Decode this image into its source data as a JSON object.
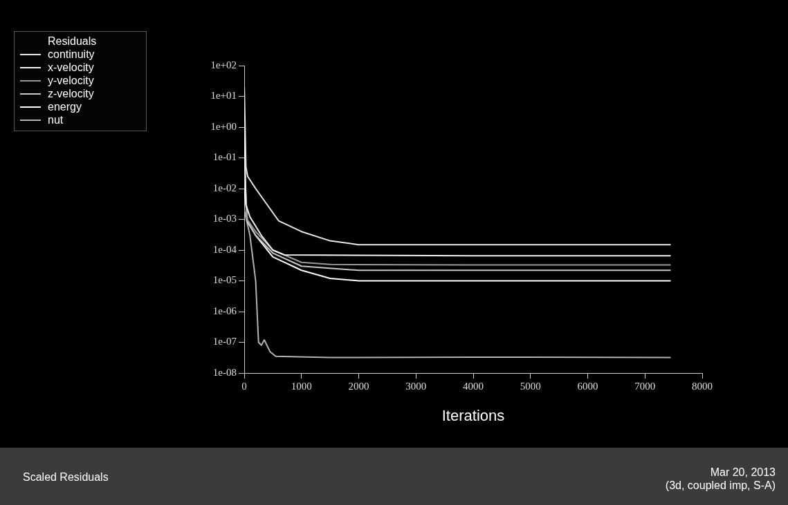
{
  "chart_data": {
    "type": "line",
    "title": "Scaled Residuals",
    "xlabel": "Iterations",
    "legend_title": "Residuals",
    "legend": "top left",
    "log": "y",
    "grid": false,
    "marker": "none",
    "xlim": [
      0,
      8000
    ],
    "xticks": [
      0,
      1000,
      2000,
      3000,
      4000,
      5000,
      6000,
      7000,
      8000
    ],
    "ylim": [
      1e-08,
      100
    ],
    "yticks": [
      {
        "value": 1e-08,
        "label": "1e-08"
      },
      {
        "value": 1e-07,
        "label": "1e-07"
      },
      {
        "value": 1e-06,
        "label": "1e-06"
      },
      {
        "value": 1e-05,
        "label": "1e-05"
      },
      {
        "value": 0.0001,
        "label": "1e-04"
      },
      {
        "value": 0.001,
        "label": "1e-03"
      },
      {
        "value": 0.01,
        "label": "1e-02"
      },
      {
        "value": 0.1,
        "label": "1e-01"
      },
      {
        "value": 1,
        "label": "1e+00"
      },
      {
        "value": 10,
        "label": "1e+01"
      },
      {
        "value": 100,
        "label": "1e+02"
      }
    ],
    "annotations": [
      "Mar 20, 2013",
      "(3d, coupled imp, S-A)"
    ],
    "series": [
      {
        "name": "continuity",
        "color": "#e8e8e8",
        "x": [
          1,
          30,
          60,
          200,
          400,
          600,
          1000,
          1500,
          2000,
          4000,
          7450
        ],
        "values": [
          20,
          0.05,
          0.025,
          0.01,
          0.003,
          0.0009,
          0.0004,
          0.0002,
          0.00015,
          0.00015,
          0.00015
        ]
      },
      {
        "name": "x-velocity",
        "color": "#f4f4f4",
        "x": [
          1,
          30,
          100,
          300,
          500,
          700,
          4000,
          7450
        ],
        "values": [
          0.8,
          0.003,
          0.0012,
          0.0003,
          0.0001,
          7e-05,
          6.5e-05,
          6.5e-05
        ]
      },
      {
        "name": "y-velocity",
        "color": "#9a9a9a",
        "x": [
          1,
          50,
          200,
          500,
          1000,
          1500,
          4000,
          7450
        ],
        "values": [
          0.1,
          0.001,
          0.0004,
          0.0001,
          4e-05,
          3.4e-05,
          3.3e-05,
          3.3e-05
        ]
      },
      {
        "name": "z-velocity",
        "color": "#c8c8c8",
        "x": [
          1,
          50,
          200,
          500,
          1000,
          2000,
          4000,
          7450
        ],
        "values": [
          0.05,
          0.0009,
          0.0003,
          8e-05,
          3e-05,
          2.2e-05,
          2.2e-05,
          2.2e-05
        ]
      },
      {
        "name": "energy",
        "color": "#ffffff",
        "x": [
          1,
          60,
          200,
          500,
          1000,
          1500,
          2000,
          4000,
          7450
        ],
        "values": [
          0.01,
          0.0008,
          0.0003,
          6e-05,
          2.2e-05,
          1.2e-05,
          1e-05,
          1e-05,
          1e-05
        ]
      },
      {
        "name": "nut",
        "color": "#b4b4b4",
        "x": [
          1,
          100,
          200,
          250,
          300,
          350,
          450,
          550,
          1500,
          4000,
          7450
        ],
        "values": [
          0.002,
          0.0003,
          1e-05,
          1e-07,
          8e-08,
          1.2e-07,
          5e-08,
          3.5e-08,
          3.2e-08,
          3.3e-08,
          3.2e-08
        ]
      }
    ]
  }
}
